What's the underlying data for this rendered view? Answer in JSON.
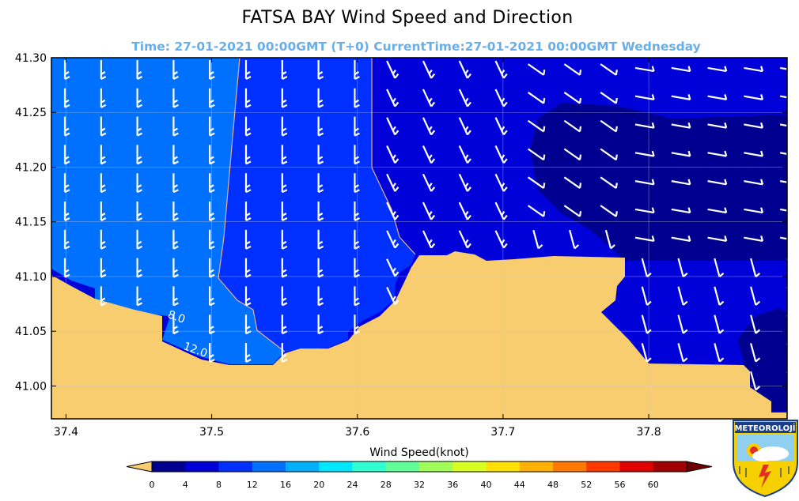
{
  "title": "FATSA BAY  Wind Speed and Direction",
  "subtitle": "Time: 27-01-2021 00:00GMT (T+0)  CurrentTime:27-01-2021 00:00GMT Wednesday",
  "subtitle_color": "#6aaee8",
  "chart_data": {
    "type": "heatmap",
    "title": "FATSA BAY  Wind Speed and Direction",
    "x_ticks": [
      37.4,
      37.5,
      37.6,
      37.7,
      37.8
    ],
    "x_tick_labels": [
      "37.4",
      "37.5",
      "37.6",
      "37.7",
      "37.8"
    ],
    "y_ticks": [
      41.3,
      41.25,
      41.2,
      41.15,
      41.1,
      41.05,
      41.0
    ],
    "y_tick_labels": [
      "41.30",
      "41.25",
      "41.20",
      "41.15",
      "41.10",
      "41.05",
      "41.00"
    ],
    "xlim": [
      37.39,
      37.895
    ],
    "ylim": [
      40.97,
      41.3
    ],
    "grid": true,
    "contour_labels": [
      {
        "text": "8.0",
        "lon": 37.475,
        "lat": 41.06
      },
      {
        "text": "12.0",
        "lon": 37.488,
        "lat": 41.03
      }
    ],
    "land_color": "#f8cd6f",
    "colorbar": {
      "label": "Wind Speed(knot)",
      "tick_labels": [
        "0",
        "4",
        "8",
        "12",
        "16",
        "20",
        "24",
        "28",
        "32",
        "36",
        "40",
        "44",
        "48",
        "52",
        "56",
        "60"
      ],
      "colors": [
        "#000090",
        "#0000d8",
        "#0030ff",
        "#0070ff",
        "#00b0ff",
        "#00e8ff",
        "#30ffd0",
        "#60ff98",
        "#a0ff58",
        "#d8ff20",
        "#ffe000",
        "#ffb000",
        "#ff7800",
        "#ff3800",
        "#e00000",
        "#a00000"
      ],
      "under_color": "#f8cd6f",
      "over_color": "#700000"
    },
    "speed_bands": [
      {
        "name": "4-8",
        "color": "#0000d8"
      },
      {
        "name": "8-12",
        "color": "#0030ff"
      },
      {
        "name": "12-16",
        "color": "#0070ff"
      },
      {
        "name": "0-4",
        "color": "#000090"
      }
    ]
  },
  "logo": {
    "text": "METEOROLOJİ"
  }
}
